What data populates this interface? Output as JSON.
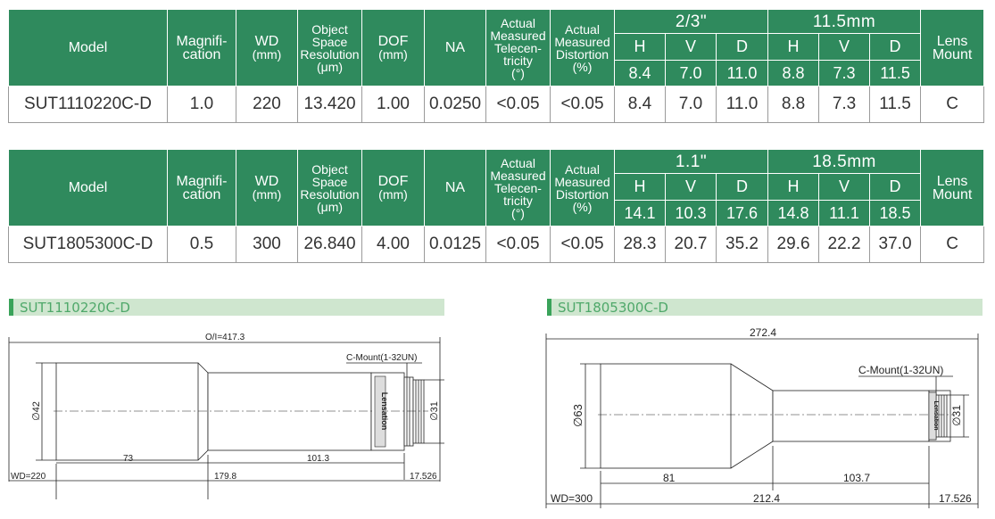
{
  "header": {
    "model": "Model",
    "magnification_1": "Magnifi-",
    "magnification_2": "cation",
    "wd": "WD",
    "wd_unit": "(mm)",
    "res_1": "Object",
    "res_2": "Space",
    "res_3": "Resolution",
    "res_unit": "(μm)",
    "dof": "DOF",
    "dof_unit": "(mm)",
    "na": "NA",
    "tel_1": "Actual",
    "tel_2": "Measured",
    "tel_3": "Telecen-",
    "tel_4": "tricity",
    "tel_unit": "(°)",
    "dist_1": "Actual",
    "dist_2": "Measured",
    "dist_3": "Distortion",
    "dist_unit": "(%)",
    "h": "H",
    "v": "V",
    "d": "D",
    "mount_1": "Lens",
    "mount_2": "Mount"
  },
  "tables": [
    {
      "sensor1": "2/3\"",
      "sensor2": "11.5mm",
      "s1": [
        "8.4",
        "7.0",
        "11.0"
      ],
      "s2": [
        "8.8",
        "7.3",
        "11.5"
      ],
      "row": [
        "SUT1110220C-D",
        "1.0",
        "220",
        "13.420",
        "1.00",
        "0.0250",
        "<0.05",
        "<0.05",
        "8.4",
        "7.0",
        "11.0",
        "8.8",
        "7.3",
        "11.5",
        "C"
      ]
    },
    {
      "sensor1": "1.1\"",
      "sensor2": "18.5mm",
      "s1": [
        "14.1",
        "10.3",
        "17.6"
      ],
      "s2": [
        "14.8",
        "11.1",
        "18.5"
      ],
      "row": [
        "SUT1805300C-D",
        "0.5",
        "300",
        "26.840",
        "4.00",
        "0.0125",
        "<0.05",
        "<0.05",
        "28.3",
        "20.7",
        "35.2",
        "29.6",
        "22.2",
        "37.0",
        "C"
      ]
    }
  ],
  "drawings": [
    {
      "title": "SUT1110220C-D",
      "total": "O/I=417.3",
      "mount": "C-Mount(1-32UN)",
      "dia_front": "∅42",
      "dia_rear": "∅31",
      "dim_a": "73",
      "dim_b": "101.3",
      "dim_c": "179.8",
      "wd": "WD=220",
      "flange": "17.526",
      "brand": "Lensation"
    },
    {
      "title": "SUT1805300C-D",
      "total": "272.4",
      "mount": "C-Mount(1-32UN)",
      "dia_front": "∅63",
      "dia_rear": "∅31",
      "dim_a": "81",
      "dim_b": "103.7",
      "dim_c": "212.4",
      "wd": "WD=300",
      "flange": "17.526",
      "brand": "Lensation"
    }
  ]
}
